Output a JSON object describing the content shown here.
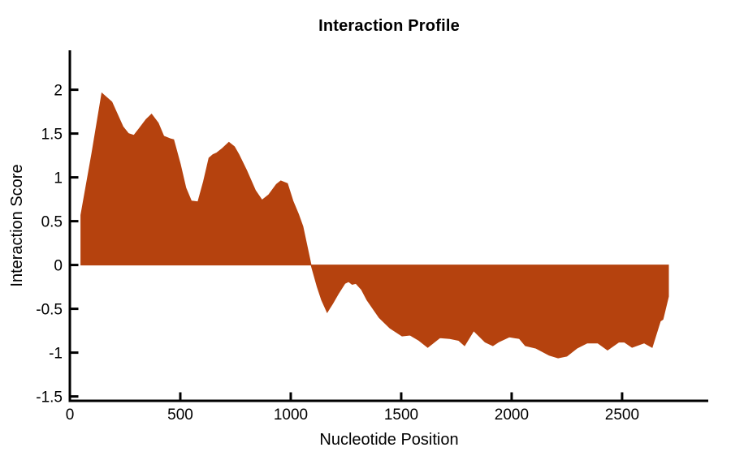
{
  "figure_title": "Interaction Profile",
  "chart_data": {
    "type": "area",
    "title": "Interaction Profile",
    "xlabel": "Nucleotide Position",
    "ylabel": "Interaction Score",
    "xlim": [
      0,
      2890
    ],
    "ylim": [
      -1.55,
      2.45
    ],
    "baseline": 0,
    "grid": false,
    "legend": null,
    "fill_color": "#b5420e",
    "axis_color": "#000000",
    "background": "#ffffff",
    "xticks": [
      {
        "v": 0,
        "label": "0"
      },
      {
        "v": 500,
        "label": "500"
      },
      {
        "v": 1000,
        "label": "1000"
      },
      {
        "v": 1500,
        "label": "1500"
      },
      {
        "v": 2000,
        "label": "2000"
      },
      {
        "v": 2500,
        "label": "2500"
      }
    ],
    "yticks": [
      {
        "v": -1.5,
        "label": "-1.5"
      },
      {
        "v": -1,
        "label": "-1"
      },
      {
        "v": -0.5,
        "label": "-0.5"
      },
      {
        "v": 0,
        "label": "0"
      },
      {
        "v": 0.5,
        "label": "0.5"
      },
      {
        "v": 1,
        "label": "1"
      },
      {
        "v": 1.5,
        "label": "1.5"
      },
      {
        "v": 2,
        "label": "2"
      }
    ],
    "points": [
      [
        50,
        0.57
      ],
      [
        100,
        1.28
      ],
      [
        145,
        1.96
      ],
      [
        190,
        1.86
      ],
      [
        240,
        1.58
      ],
      [
        265,
        1.5
      ],
      [
        290,
        1.48
      ],
      [
        315,
        1.56
      ],
      [
        345,
        1.66
      ],
      [
        370,
        1.72
      ],
      [
        400,
        1.62
      ],
      [
        425,
        1.47
      ],
      [
        455,
        1.44
      ],
      [
        470,
        1.43
      ],
      [
        500,
        1.15
      ],
      [
        525,
        0.88
      ],
      [
        550,
        0.73
      ],
      [
        580,
        0.72
      ],
      [
        605,
        0.95
      ],
      [
        630,
        1.22
      ],
      [
        648,
        1.26
      ],
      [
        665,
        1.28
      ],
      [
        690,
        1.33
      ],
      [
        720,
        1.4
      ],
      [
        745,
        1.35
      ],
      [
        765,
        1.26
      ],
      [
        800,
        1.08
      ],
      [
        840,
        0.85
      ],
      [
        870,
        0.74
      ],
      [
        900,
        0.8
      ],
      [
        935,
        0.92
      ],
      [
        955,
        0.96
      ],
      [
        985,
        0.93
      ],
      [
        1010,
        0.73
      ],
      [
        1035,
        0.58
      ],
      [
        1055,
        0.44
      ],
      [
        1092,
        0.0
      ],
      [
        1120,
        -0.25
      ],
      [
        1140,
        -0.4
      ],
      [
        1165,
        -0.54
      ],
      [
        1190,
        -0.44
      ],
      [
        1215,
        -0.33
      ],
      [
        1245,
        -0.21
      ],
      [
        1262,
        -0.19
      ],
      [
        1278,
        -0.22
      ],
      [
        1295,
        -0.21
      ],
      [
        1320,
        -0.28
      ],
      [
        1345,
        -0.4
      ],
      [
        1400,
        -0.6
      ],
      [
        1449,
        -0.72
      ],
      [
        1504,
        -0.81
      ],
      [
        1540,
        -0.8
      ],
      [
        1580,
        -0.86
      ],
      [
        1620,
        -0.94
      ],
      [
        1675,
        -0.83
      ],
      [
        1720,
        -0.84
      ],
      [
        1760,
        -0.86
      ],
      [
        1787,
        -0.92
      ],
      [
        1828,
        -0.75
      ],
      [
        1880,
        -0.88
      ],
      [
        1915,
        -0.92
      ],
      [
        1940,
        -0.88
      ],
      [
        1990,
        -0.82
      ],
      [
        2035,
        -0.84
      ],
      [
        2062,
        -0.92
      ],
      [
        2110,
        -0.95
      ],
      [
        2170,
        -1.03
      ],
      [
        2210,
        -1.06
      ],
      [
        2250,
        -1.04
      ],
      [
        2295,
        -0.95
      ],
      [
        2342,
        -0.89
      ],
      [
        2390,
        -0.89
      ],
      [
        2434,
        -0.97
      ],
      [
        2485,
        -0.88
      ],
      [
        2510,
        -0.88
      ],
      [
        2545,
        -0.94
      ],
      [
        2600,
        -0.89
      ],
      [
        2636,
        -0.94
      ],
      [
        2673,
        -0.64
      ],
      [
        2685,
        -0.62
      ],
      [
        2710,
        -0.36
      ]
    ]
  }
}
